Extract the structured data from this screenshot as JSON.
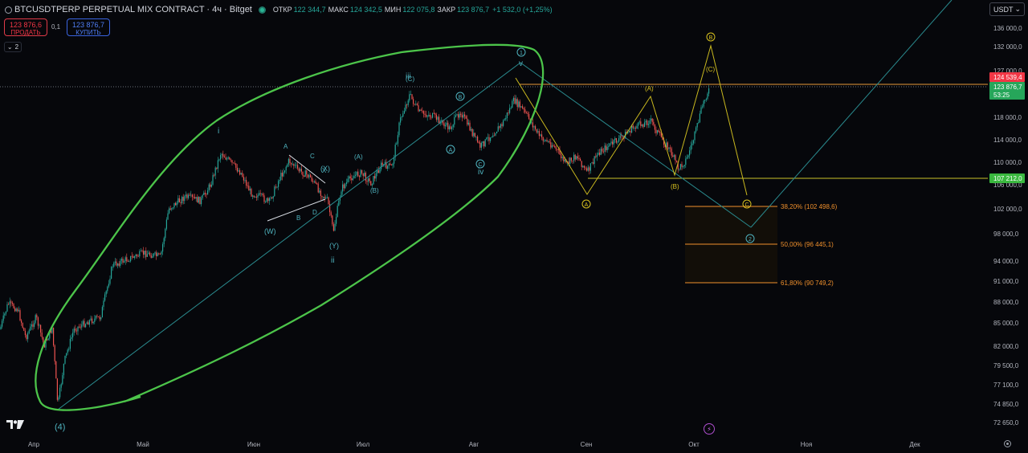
{
  "header": {
    "symbol": "BTCUSDTPERP PERPETUAL MIX CONTRACT · 4ч · Bitget",
    "open_label": "ОТКР",
    "open_value": "122 344,7",
    "high_label": "МАКС",
    "high_value": "124 342,5",
    "low_label": "МИН",
    "low_value": "122 075,8",
    "close_label": "ЗАКР",
    "close_value": "123 876,7",
    "change_value": "+1 532,0 (+1,25%)"
  },
  "trade": {
    "sell_price": "123 876,6",
    "sell_label": "ПРОДАТЬ",
    "spread": "0,1",
    "buy_price": "123 876,7",
    "buy_label": "КУПИТЬ"
  },
  "indicators_count": "2",
  "currency": "USDT",
  "colors": {
    "background": "#06070b",
    "up": "#26a69a",
    "down": "#ef5350",
    "wave_green": "#4cc44a",
    "teal": "#4fb3bf",
    "yellow": "#d8c21f",
    "fib": "#f0902c",
    "price_red": "#f23645",
    "price_green": "#26a65a",
    "support_green": "#3ab83f"
  },
  "price_axis": {
    "ticks": [
      "136 000,0",
      "132 000,0",
      "127 000,0",
      "123 000,0",
      "118 000,0",
      "114 000,0",
      "110 000,0",
      "106 000,0",
      "102 000,0",
      "98 000,0",
      "94 000,0",
      "91 000,0",
      "88 000,0",
      "85 000,0",
      "82 000,0",
      "79 500,0",
      "77 100,0",
      "74 850,0",
      "72 650,0"
    ],
    "labels": {
      "resistance": "124 539,4",
      "current": "123 876,7",
      "countdown": "53:25",
      "support": "107 212,0"
    }
  },
  "time_axis": [
    "Апр",
    "Май",
    "Июн",
    "Июл",
    "Авг",
    "Сен",
    "Окт",
    "Ноя",
    "Дек"
  ],
  "fib_levels": [
    {
      "label": "38,20% (102 498,6)"
    },
    {
      "label": "50,00% (96 445,1)"
    },
    {
      "label": "61,80% (90 749,2)"
    }
  ],
  "wave_labels": {
    "teal": [
      "(4)",
      "i",
      "ii",
      "iii",
      "iv",
      "v",
      "(W)",
      "(X)",
      "(Y)",
      "A",
      "B",
      "C",
      "D",
      "X",
      "(A)",
      "(B)",
      "(C)"
    ],
    "teal_circled": [
      "A",
      "B",
      "C",
      "1",
      "2"
    ],
    "yellow": [
      "(A)",
      "(B)",
      "(C)"
    ],
    "yellow_circled": [
      "A",
      "B",
      "C"
    ]
  }
}
